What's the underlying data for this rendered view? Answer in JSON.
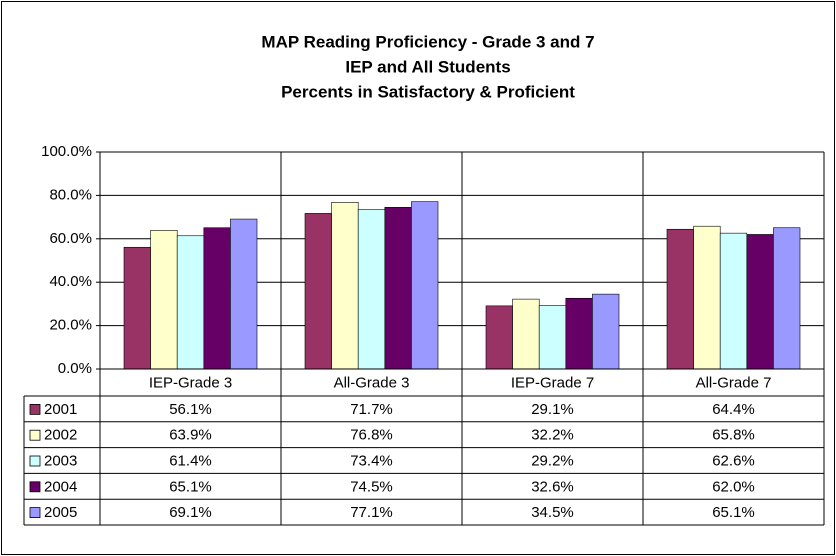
{
  "chart_data": {
    "type": "bar",
    "title": [
      "MAP Reading Proficiency - Grade 3 and 7",
      "IEP and All Students",
      "Percents in Satisfactory & Proficient"
    ],
    "categories": [
      "IEP-Grade 3",
      "All-Grade 3",
      "IEP-Grade 7",
      "All-Grade 7"
    ],
    "series": [
      {
        "name": "2001",
        "color": "#993366",
        "values": [
          56.1,
          71.7,
          29.1,
          64.4
        ],
        "value_labels": [
          "56.1%",
          "71.7%",
          "29.1%",
          "64.4%"
        ]
      },
      {
        "name": "2002",
        "color": "#FFFFCC",
        "values": [
          63.9,
          76.8,
          32.2,
          65.8
        ],
        "value_labels": [
          "63.9%",
          "76.8%",
          "32.2%",
          "65.8%"
        ]
      },
      {
        "name": "2003",
        "color": "#CCFFFF",
        "values": [
          61.4,
          73.4,
          29.2,
          62.6
        ],
        "value_labels": [
          "61.4%",
          "73.4%",
          "29.2%",
          "62.6%"
        ]
      },
      {
        "name": "2004",
        "color": "#660066",
        "values": [
          65.1,
          74.5,
          32.6,
          62.0
        ],
        "value_labels": [
          "65.1%",
          "74.5%",
          "32.6%",
          "62.0%"
        ]
      },
      {
        "name": "2005",
        "color": "#9999FF",
        "values": [
          69.1,
          77.1,
          34.5,
          65.1
        ],
        "value_labels": [
          "69.1%",
          "77.1%",
          "34.5%",
          "65.1%"
        ]
      }
    ],
    "ylim": [
      0,
      100
    ],
    "yticks": [
      {
        "value": 0,
        "label": "0.0%"
      },
      {
        "value": 20,
        "label": "20.0%"
      },
      {
        "value": 40,
        "label": "40.0%"
      },
      {
        "value": 60,
        "label": "60.0%"
      },
      {
        "value": 80,
        "label": "80.0%"
      },
      {
        "value": 100,
        "label": "100.0%"
      }
    ],
    "grid": true
  }
}
